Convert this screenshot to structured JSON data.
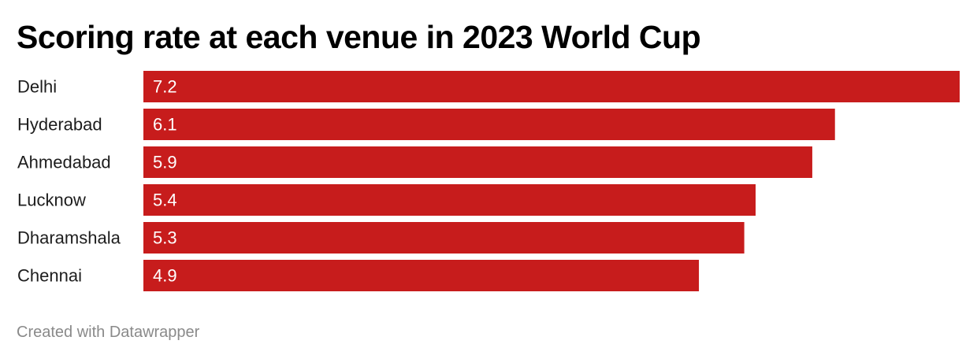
{
  "chart_data": {
    "type": "bar",
    "orientation": "horizontal",
    "title": "Scoring rate at each venue in 2023 World Cup",
    "categories": [
      "Delhi",
      "Hyderabad",
      "Ahmedabad",
      "Lucknow",
      "Dharamshala",
      "Chennai"
    ],
    "values": [
      7.2,
      6.1,
      5.9,
      5.4,
      5.3,
      4.9
    ],
    "xlim": [
      0,
      7.2
    ],
    "bar_color": "#c71c1c",
    "value_label_color": "#ffffff",
    "grid": false,
    "legend": "none"
  },
  "footer": {
    "credit": "Created with Datawrapper"
  }
}
